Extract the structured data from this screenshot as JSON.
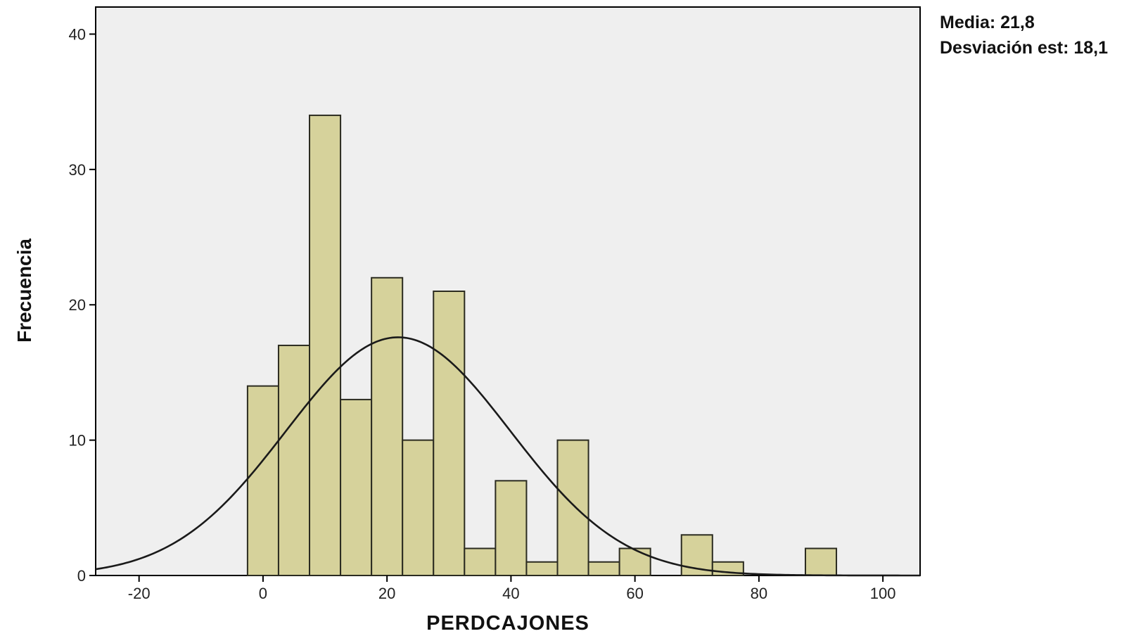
{
  "chart_data": {
    "type": "bar",
    "subtype": "histogram",
    "xlabel": "PERDCAJONES",
    "ylabel": "Frecuencia",
    "xlim": [
      -27,
      106
    ],
    "ylim": [
      0,
      42
    ],
    "x_ticks": [
      -20,
      0,
      20,
      40,
      60,
      80,
      100
    ],
    "y_ticks": [
      0,
      10,
      20,
      30,
      40
    ],
    "bin_width": 5,
    "bins": [
      {
        "x0": -2.5,
        "x1": 2.5,
        "value": 14
      },
      {
        "x0": 2.5,
        "x1": 7.5,
        "value": 17
      },
      {
        "x0": 7.5,
        "x1": 12.5,
        "value": 34
      },
      {
        "x0": 12.5,
        "x1": 17.5,
        "value": 13
      },
      {
        "x0": 17.5,
        "x1": 22.5,
        "value": 22
      },
      {
        "x0": 22.5,
        "x1": 27.5,
        "value": 10
      },
      {
        "x0": 27.5,
        "x1": 32.5,
        "value": 21
      },
      {
        "x0": 32.5,
        "x1": 37.5,
        "value": 2
      },
      {
        "x0": 37.5,
        "x1": 42.5,
        "value": 7
      },
      {
        "x0": 42.5,
        "x1": 47.5,
        "value": 1
      },
      {
        "x0": 47.5,
        "x1": 52.5,
        "value": 10
      },
      {
        "x0": 52.5,
        "x1": 57.5,
        "value": 1
      },
      {
        "x0": 57.5,
        "x1": 62.5,
        "value": 2
      },
      {
        "x0": 67.5,
        "x1": 72.5,
        "value": 3
      },
      {
        "x0": 72.5,
        "x1": 77.5,
        "value": 1
      },
      {
        "x0": 87.5,
        "x1": 92.5,
        "value": 2
      }
    ],
    "normal_curve": {
      "mean": 21.8,
      "sd": 18.1,
      "peak_frequency": 17.6
    },
    "stats": [
      "Media: 21,8",
      "Desviación est: 18,1"
    ],
    "grid": false,
    "colors": {
      "bar_fill": "#d6d29b",
      "bar_stroke": "#2b2b20",
      "plot_background": "#efefef",
      "curve": "#1a1a1a"
    }
  }
}
